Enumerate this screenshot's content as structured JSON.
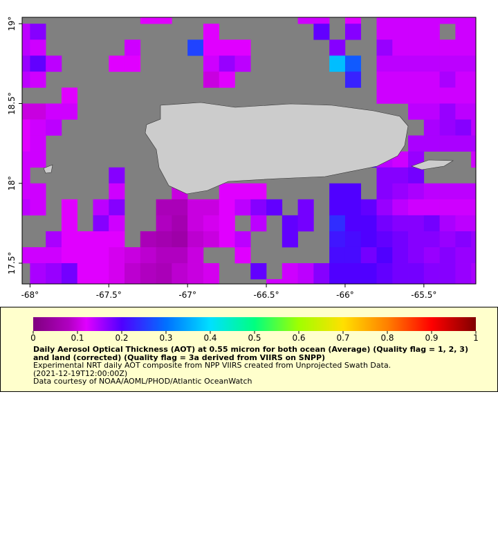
{
  "chart_data": {
    "type": "heatmap",
    "x": [
      -68.05,
      -67.95,
      -67.85,
      -67.75,
      -67.65,
      -67.55,
      -67.45,
      -67.35,
      -67.25,
      -67.15,
      -67.05,
      -66.95,
      -66.85,
      -66.75,
      -66.65,
      -66.55,
      -66.45,
      -66.35,
      -66.25,
      -66.15,
      -66.05,
      -65.95,
      -65.85,
      -65.75,
      -65.65,
      -65.55,
      -65.45,
      -65.35,
      -65.25,
      -65.15
    ],
    "y": [
      19.05,
      18.95,
      18.85,
      18.75,
      18.65,
      18.55,
      18.45,
      18.35,
      18.25,
      18.15,
      18.05,
      17.95,
      17.85,
      17.75,
      17.65,
      17.55,
      17.45,
      17.35
    ],
    "values": [
      [
        null,
        null,
        null,
        null,
        null,
        null,
        null,
        null,
        0.12,
        0.12,
        null,
        null,
        null,
        null,
        null,
        null,
        null,
        null,
        0.13,
        0.13,
        null,
        0.12,
        null,
        0.13,
        0.13,
        0.13,
        0.13,
        0.13,
        0.13,
        0.13
      ],
      [
        0.14,
        0.17,
        null,
        null,
        null,
        null,
        null,
        null,
        null,
        null,
        null,
        null,
        0.12,
        null,
        null,
        null,
        null,
        null,
        null,
        0.19,
        null,
        0.17,
        null,
        0.13,
        0.13,
        0.13,
        0.13,
        null,
        0.13,
        0.13
      ],
      [
        0.14,
        0.13,
        null,
        null,
        null,
        null,
        null,
        0.13,
        null,
        null,
        null,
        0.26,
        0.12,
        0.12,
        0.12,
        null,
        null,
        null,
        null,
        null,
        0.17,
        null,
        null,
        0.16,
        0.13,
        0.13,
        0.13,
        0.13,
        0.13,
        0.13
      ],
      [
        0.16,
        0.19,
        0.14,
        null,
        null,
        null,
        0.12,
        0.12,
        null,
        null,
        null,
        null,
        0.13,
        0.16,
        0.14,
        null,
        null,
        null,
        null,
        null,
        0.37,
        0.28,
        null,
        0.14,
        0.14,
        0.14,
        0.14,
        0.14,
        0.14,
        0.14
      ],
      [
        0.14,
        0.13,
        null,
        null,
        null,
        null,
        null,
        null,
        null,
        null,
        null,
        null,
        0.1,
        0.12,
        null,
        null,
        null,
        null,
        null,
        null,
        null,
        0.23,
        null,
        0.13,
        0.13,
        0.13,
        0.13,
        0.15,
        0.13,
        0.13
      ],
      [
        null,
        null,
        null,
        0.12,
        null,
        null,
        null,
        null,
        null,
        null,
        null,
        null,
        null,
        null,
        null,
        null,
        null,
        null,
        null,
        null,
        null,
        null,
        null,
        0.13,
        0.13,
        0.13,
        0.13,
        0.13,
        0.13,
        0.13
      ],
      [
        0.1,
        0.1,
        0.13,
        0.13,
        null,
        null,
        null,
        null,
        null,
        null,
        null,
        null,
        null,
        null,
        null,
        null,
        null,
        null,
        null,
        null,
        null,
        null,
        null,
        null,
        null,
        0.14,
        0.14,
        0.16,
        0.14,
        0.14
      ],
      [
        0.12,
        0.13,
        0.14,
        null,
        null,
        null,
        null,
        null,
        null,
        null,
        null,
        null,
        null,
        null,
        null,
        null,
        null,
        null,
        null,
        null,
        null,
        null,
        null,
        null,
        null,
        null,
        0.15,
        0.16,
        0.17,
        0.14
      ],
      [
        0.12,
        0.13,
        null,
        null,
        null,
        null,
        null,
        null,
        null,
        null,
        null,
        0.21,
        null,
        null,
        null,
        null,
        null,
        null,
        null,
        null,
        null,
        null,
        null,
        null,
        null,
        0.15,
        0.15,
        0.15,
        0.15,
        0.15
      ],
      [
        0.13,
        0.13,
        null,
        null,
        null,
        null,
        null,
        null,
        null,
        null,
        null,
        null,
        null,
        null,
        null,
        null,
        null,
        null,
        null,
        null,
        null,
        null,
        0.21,
        0.14,
        0.13,
        0.16,
        null,
        null,
        null,
        0.13
      ],
      [
        0.13,
        null,
        null,
        null,
        null,
        null,
        0.17,
        null,
        null,
        null,
        null,
        null,
        null,
        null,
        null,
        null,
        null,
        null,
        null,
        null,
        null,
        null,
        null,
        0.17,
        0.17,
        0.18,
        null,
        null,
        null,
        null
      ],
      [
        0.13,
        0.13,
        null,
        null,
        null,
        null,
        0.13,
        null,
        null,
        null,
        0.1,
        null,
        null,
        0.12,
        0.12,
        0.12,
        null,
        null,
        null,
        null,
        0.2,
        0.2,
        null,
        0.17,
        0.16,
        0.15,
        0.14,
        0.14,
        0.14,
        0.14
      ],
      [
        0.14,
        0.13,
        null,
        0.12,
        null,
        0.14,
        0.17,
        null,
        null,
        0.07,
        0.07,
        0.1,
        0.1,
        0.12,
        0.14,
        0.17,
        0.19,
        null,
        0.18,
        null,
        0.2,
        0.2,
        0.19,
        0.16,
        0.14,
        0.13,
        0.13,
        0.13,
        0.13,
        0.13
      ],
      [
        null,
        null,
        null,
        0.12,
        null,
        0.17,
        0.13,
        null,
        null,
        0.08,
        0.06,
        0.1,
        0.11,
        0.12,
        null,
        0.14,
        null,
        0.19,
        0.18,
        null,
        0.24,
        0.2,
        0.2,
        0.18,
        0.17,
        0.17,
        0.18,
        0.15,
        0.14,
        0.14
      ],
      [
        null,
        null,
        0.15,
        0.12,
        0.12,
        0.12,
        0.12,
        null,
        0.07,
        0.06,
        0.05,
        0.09,
        0.1,
        0.12,
        0.14,
        null,
        null,
        0.19,
        null,
        null,
        0.22,
        0.21,
        0.2,
        0.19,
        0.18,
        0.17,
        0.17,
        0.16,
        0.17,
        0.16
      ],
      [
        0.13,
        0.13,
        0.13,
        0.12,
        0.12,
        0.12,
        0.11,
        0.1,
        0.09,
        0.08,
        0.08,
        0.1,
        null,
        null,
        0.12,
        null,
        null,
        null,
        null,
        null,
        0.21,
        0.21,
        0.18,
        0.2,
        0.18,
        0.17,
        0.16,
        0.17,
        0.16,
        0.16
      ],
      [
        null,
        0.15,
        0.16,
        0.18,
        0.12,
        0.12,
        0.11,
        0.09,
        0.08,
        0.07,
        0.09,
        0.1,
        0.11,
        null,
        null,
        0.19,
        null,
        0.13,
        0.14,
        0.17,
        0.2,
        0.2,
        0.2,
        0.19,
        0.18,
        0.18,
        0.17,
        0.17,
        0.16,
        0.15
      ],
      [
        null,
        0.15,
        0.16,
        0.18,
        0.12,
        0.12,
        0.11,
        0.09,
        0.08,
        0.07,
        0.09,
        0.1,
        0.11,
        null,
        null,
        null,
        0.13,
        0.13,
        0.14,
        0.17,
        0.2,
        0.2,
        0.2,
        0.19,
        0.18,
        0.18,
        0.17,
        0.17,
        0.16,
        0.15
      ]
    ],
    "xlim": [
      -68.05,
      -65.17
    ],
    "ylim": [
      17.37,
      19.04
    ],
    "xticks": [
      {
        "value": -68,
        "label": "-68°"
      },
      {
        "value": -67.5,
        "label": "-67.5°"
      },
      {
        "value": -67,
        "label": "-67°"
      },
      {
        "value": -66.5,
        "label": "-66.5°"
      },
      {
        "value": -66,
        "label": "-66°"
      },
      {
        "value": -65.5,
        "label": "-65.5°"
      }
    ],
    "yticks": [
      {
        "value": 17.5,
        "label": "17.5°"
      },
      {
        "value": 18,
        "label": "18°"
      },
      {
        "value": 18.5,
        "label": "18.5°"
      },
      {
        "value": 19,
        "label": "19°"
      }
    ],
    "colorbar": {
      "lim": [
        0,
        1
      ],
      "ticks": [
        0,
        0.1,
        0.2,
        0.3,
        0.4,
        0.5,
        0.6,
        0.7,
        0.8,
        0.9,
        1
      ]
    },
    "title": "Daily Aerosol Optical Thickness (AOT) at 0.55 micron for both ocean (Average) (Quality flag = 1, 2, 3) and land (corrected) (Quality flag = 3a derived from VIIRS on SNPP)",
    "subtitle": "Experimental NRT daily AOT composite from NPP VIIRS created from Unprojected Swath Data.",
    "time": "(2021-12-19T12:00:00Z)",
    "credit": "Data courtesy of NOAA/AOML/PHOD/Atlantic OceanWatch"
  }
}
